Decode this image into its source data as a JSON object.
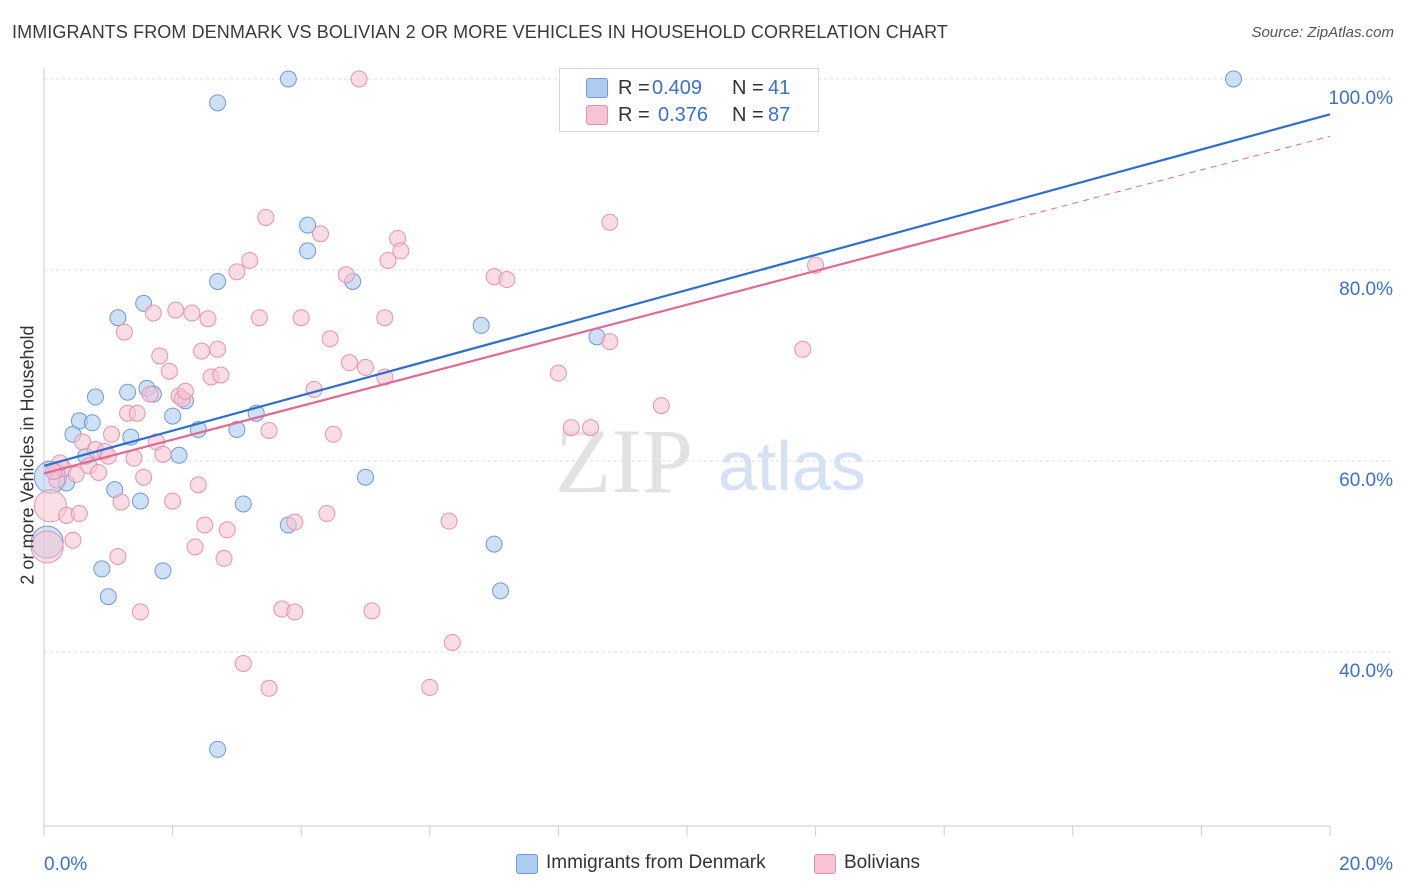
{
  "title": "IMMIGRANTS FROM DENMARK VS BOLIVIAN 2 OR MORE VEHICLES IN HOUSEHOLD CORRELATION CHART",
  "source": "Source: ZipAtlas.com",
  "watermark": {
    "zip": "ZIP",
    "atlas": "atlas"
  },
  "legend_top": [
    {
      "r_label": "R =",
      "r_value": "0.409",
      "n_label": "N =",
      "n_value": "41"
    },
    {
      "r_label": "R =",
      "r_value": "0.376",
      "n_label": "N =",
      "n_value": "87"
    }
  ],
  "legend_bottom": [
    "Immigrants from Denmark",
    "Bolivians"
  ],
  "chart_data": {
    "type": "scatter",
    "title": "IMMIGRANTS FROM DENMARK VS BOLIVIAN 2 OR MORE VEHICLES IN HOUSEHOLD CORRELATION CHART",
    "xlabel": "",
    "ylabel": "2 or more Vehicles in Household",
    "xlim": [
      0,
      20
    ],
    "ylim": [
      20,
      102
    ],
    "x_tick_labels": [
      "0.0%",
      "20.0%"
    ],
    "y_ticks": [
      40,
      60,
      80,
      100
    ],
    "y_tick_labels": [
      "40.0%",
      "60.0%",
      "80.0%",
      "100.0%"
    ],
    "grid": true,
    "legend_position": "top-center",
    "colors": {
      "denmark_fill": "#aecbf0",
      "denmark_stroke": "#6e9ad8",
      "denmark_line": "#2f6fcc",
      "bolivia_fill": "#f7c4d4",
      "bolivia_stroke": "#e892ad",
      "bolivia_line": "#e06a93",
      "tick_label": "#3a72c8",
      "grid": "#dddddd"
    },
    "series": [
      {
        "name": "Immigrants from Denmark",
        "r": 0.409,
        "n": 41,
        "trend": {
          "x": [
            0,
            20
          ],
          "y": [
            59.5,
            96.3
          ]
        },
        "points": [
          [
            0.05,
            51.5
          ],
          [
            0.1,
            58.3
          ],
          [
            0.2,
            59.0
          ],
          [
            0.35,
            57.7
          ],
          [
            0.45,
            62.8
          ],
          [
            0.55,
            64.2
          ],
          [
            0.65,
            60.5
          ],
          [
            0.75,
            64.0
          ],
          [
            0.8,
            66.7
          ],
          [
            0.9,
            48.7
          ],
          [
            1.0,
            45.8
          ],
          [
            1.1,
            57.0
          ],
          [
            1.15,
            75.0
          ],
          [
            1.3,
            67.2
          ],
          [
            1.35,
            62.5
          ],
          [
            1.5,
            55.8
          ],
          [
            1.55,
            76.5
          ],
          [
            1.6,
            67.6
          ],
          [
            1.7,
            67.0
          ],
          [
            1.85,
            48.5
          ],
          [
            2.0,
            64.7
          ],
          [
            2.1,
            60.6
          ],
          [
            2.2,
            66.3
          ],
          [
            2.4,
            63.3
          ],
          [
            2.7,
            97.5
          ],
          [
            2.7,
            29.8
          ],
          [
            2.7,
            78.8
          ],
          [
            3.0,
            63.3
          ],
          [
            3.1,
            55.5
          ],
          [
            3.3,
            65.0
          ],
          [
            3.8,
            100.0
          ],
          [
            3.8,
            53.3
          ],
          [
            4.1,
            84.7
          ],
          [
            4.1,
            82.0
          ],
          [
            4.8,
            78.8
          ],
          [
            5.0,
            58.3
          ],
          [
            6.8,
            74.2
          ],
          [
            7.1,
            46.4
          ],
          [
            7.0,
            51.3
          ],
          [
            8.6,
            73.0
          ],
          [
            18.5,
            100.0
          ]
        ]
      },
      {
        "name": "Bolivians",
        "r": 0.376,
        "n": 87,
        "trend": {
          "x": [
            0,
            15
          ],
          "y": [
            58.7,
            85.2
          ]
        },
        "trend_ext": {
          "x": [
            15,
            20
          ],
          "y": [
            85.2,
            94.0
          ]
        },
        "points": [
          [
            0.05,
            51.0
          ],
          [
            0.1,
            55.3
          ],
          [
            0.2,
            58.0
          ],
          [
            0.3,
            59.2
          ],
          [
            0.35,
            54.3
          ],
          [
            0.45,
            51.7
          ],
          [
            0.5,
            58.6
          ],
          [
            0.55,
            54.5
          ],
          [
            0.6,
            62.0
          ],
          [
            0.7,
            59.5
          ],
          [
            0.8,
            61.2
          ],
          [
            0.85,
            58.8
          ],
          [
            0.95,
            61.0
          ],
          [
            1.0,
            60.5
          ],
          [
            1.05,
            62.8
          ],
          [
            1.15,
            50.0
          ],
          [
            1.2,
            55.7
          ],
          [
            1.25,
            73.5
          ],
          [
            1.3,
            65.0
          ],
          [
            1.4,
            60.3
          ],
          [
            1.45,
            65.0
          ],
          [
            1.5,
            44.2
          ],
          [
            1.55,
            58.3
          ],
          [
            1.65,
            67.0
          ],
          [
            1.7,
            75.5
          ],
          [
            1.75,
            62.0
          ],
          [
            1.8,
            71.0
          ],
          [
            1.85,
            60.7
          ],
          [
            1.95,
            69.4
          ],
          [
            2.0,
            55.8
          ],
          [
            2.05,
            75.8
          ],
          [
            2.1,
            66.8
          ],
          [
            2.15,
            66.5
          ],
          [
            2.2,
            67.3
          ],
          [
            2.3,
            75.5
          ],
          [
            2.35,
            51.0
          ],
          [
            2.4,
            57.5
          ],
          [
            2.45,
            71.5
          ],
          [
            2.5,
            53.3
          ],
          [
            2.55,
            74.9
          ],
          [
            2.6,
            68.8
          ],
          [
            2.7,
            71.7
          ],
          [
            2.75,
            69.0
          ],
          [
            2.8,
            49.8
          ],
          [
            2.85,
            52.8
          ],
          [
            3.0,
            79.8
          ],
          [
            3.1,
            38.8
          ],
          [
            3.2,
            81.0
          ],
          [
            3.35,
            75.0
          ],
          [
            3.45,
            85.5
          ],
          [
            3.5,
            63.2
          ],
          [
            3.5,
            36.2
          ],
          [
            3.7,
            44.5
          ],
          [
            3.9,
            53.6
          ],
          [
            3.9,
            44.2
          ],
          [
            4.0,
            75.0
          ],
          [
            4.2,
            67.5
          ],
          [
            4.3,
            83.8
          ],
          [
            4.4,
            54.5
          ],
          [
            4.45,
            72.8
          ],
          [
            4.5,
            62.8
          ],
          [
            4.7,
            79.5
          ],
          [
            4.75,
            70.3
          ],
          [
            4.9,
            100.0
          ],
          [
            5.0,
            69.8
          ],
          [
            5.1,
            44.3
          ],
          [
            5.3,
            68.8
          ],
          [
            5.3,
            75.0
          ],
          [
            5.35,
            81.0
          ],
          [
            5.5,
            83.3
          ],
          [
            5.55,
            82.0
          ],
          [
            6.0,
            36.3
          ],
          [
            6.3,
            53.7
          ],
          [
            6.35,
            41.0
          ],
          [
            7.0,
            79.3
          ],
          [
            7.2,
            79.0
          ],
          [
            8.0,
            69.2
          ],
          [
            8.2,
            63.5
          ],
          [
            8.5,
            63.5
          ],
          [
            8.8,
            85.0
          ],
          [
            8.8,
            72.5
          ],
          [
            9.6,
            65.8
          ],
          [
            11.1,
            100.0
          ],
          [
            11.8,
            71.7
          ],
          [
            12.0,
            80.5
          ],
          [
            0.25,
            59.8
          ],
          [
            0.15,
            58.9
          ]
        ]
      }
    ]
  }
}
